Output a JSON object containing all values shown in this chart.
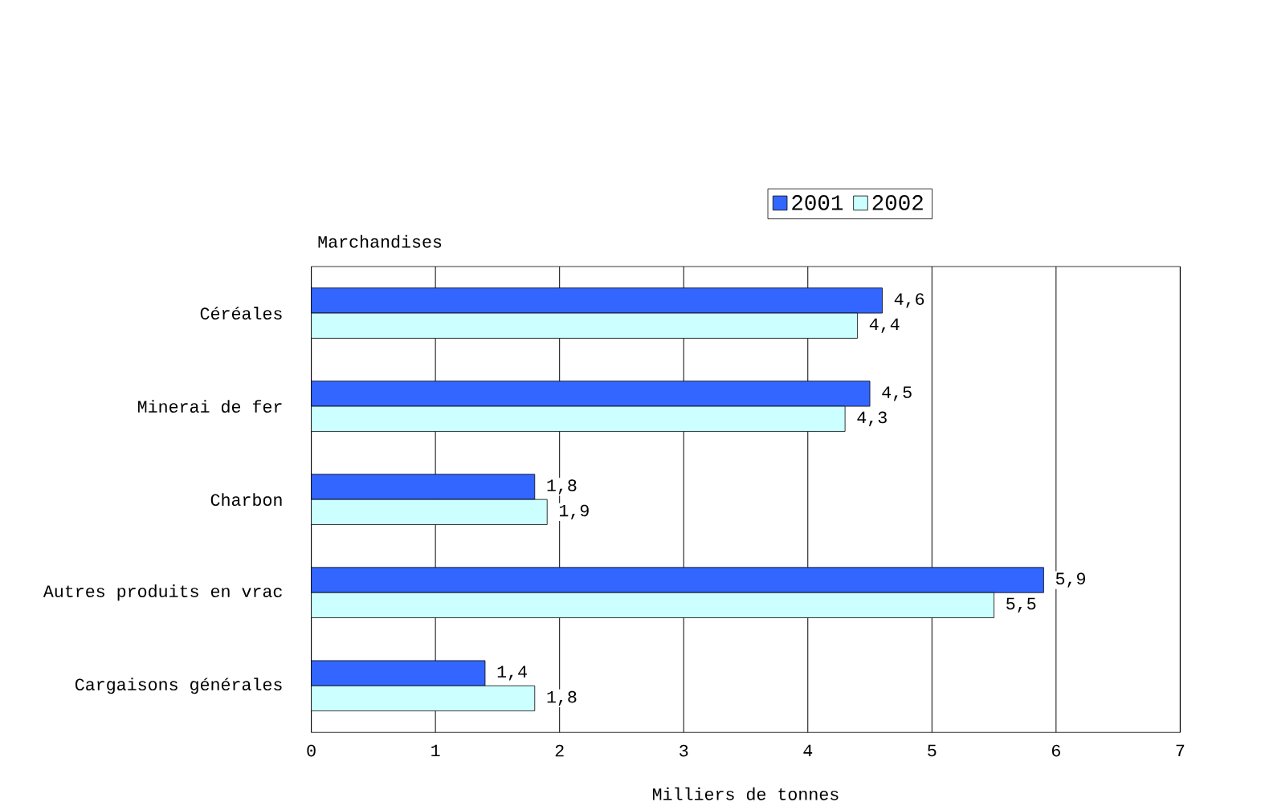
{
  "chart_data": {
    "type": "bar",
    "orientation": "horizontal",
    "ylabel": "Marchandises",
    "xlabel": "Milliers de tonnes",
    "categories": [
      "Céréales",
      "Minerai de fer",
      "Charbon",
      "Autres produits en vrac",
      "Cargaisons générales"
    ],
    "series": [
      {
        "name": "2001",
        "color": "#3366ff",
        "values": [
          4.6,
          4.5,
          1.8,
          5.9,
          1.4
        ],
        "value_labels": [
          "4,6",
          "4,5",
          "1,8",
          "5,9",
          "1,4"
        ]
      },
      {
        "name": "2002",
        "color": "#ccffff",
        "values": [
          4.4,
          4.3,
          1.9,
          5.5,
          1.8
        ],
        "value_labels": [
          "4,4",
          "4,3",
          "1,9",
          "5,5",
          "1,8"
        ]
      }
    ],
    "xlim": [
      0,
      7
    ],
    "xticks": [
      0,
      1,
      2,
      3,
      4,
      5,
      6,
      7
    ],
    "grid": "x",
    "legend": "top"
  }
}
